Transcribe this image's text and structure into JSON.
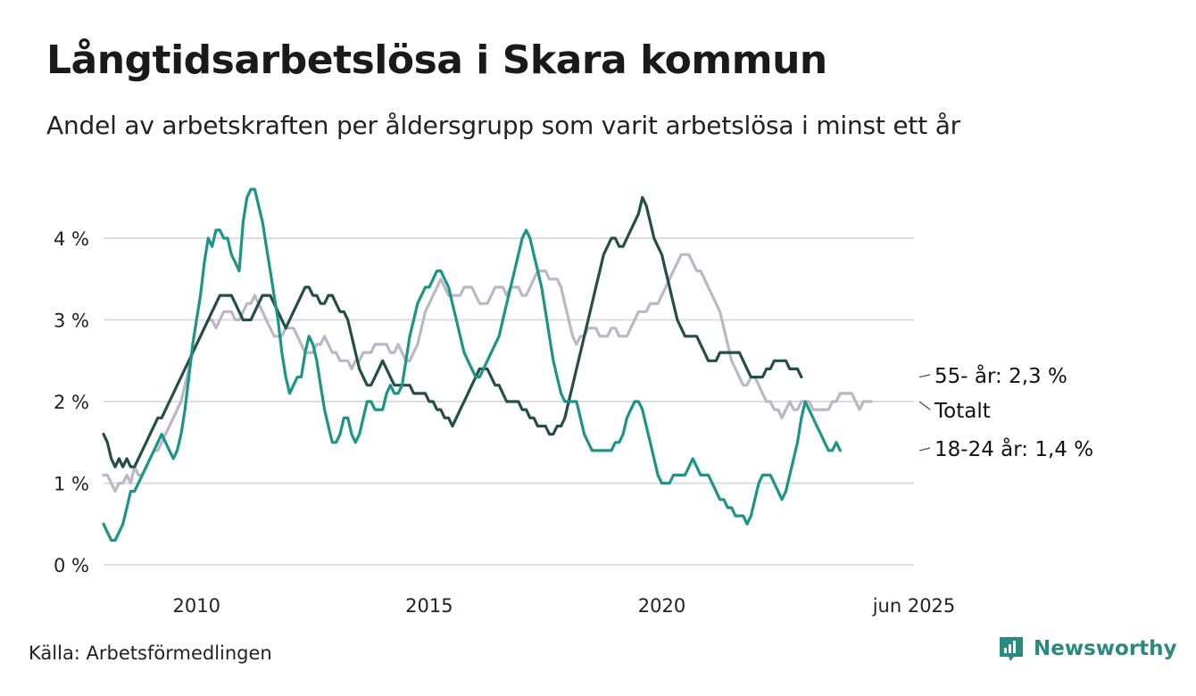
{
  "title": "Långtidsarbetslösa i Skara kommun",
  "subtitle": "Andel av arbetskraften per åldersgrupp som varit arbetslösa i minst ett år",
  "source": "Källa: Arbetsförmedlingen",
  "brand": "Newsworthy",
  "colors": {
    "total": "#bcb7c6",
    "age55": "#254e48",
    "age18": "#1b9585",
    "grid": "#dddddd",
    "brand": "#2a8a80"
  },
  "chart_data": {
    "type": "line",
    "x_start": 2008.0,
    "x_step": 0.0833333,
    "xlim": [
      2008.0,
      2025.42
    ],
    "ylim": [
      0,
      4.7
    ],
    "y_ticks": [
      0,
      1,
      2,
      3,
      4
    ],
    "y_tick_labels": [
      "0 %",
      "1 %",
      "2 %",
      "3 %",
      "4 %"
    ],
    "x_ticks": [
      2010,
      2015,
      2020,
      2025.42
    ],
    "x_tick_labels": [
      "2010",
      "2015",
      "2020",
      "jun 2025"
    ],
    "grid": true,
    "series": [
      {
        "name": "Totalt",
        "end_label": "Totalt",
        "color_key": "total",
        "values": [
          1.1,
          1.1,
          1.0,
          0.9,
          1.0,
          1.0,
          1.1,
          1.0,
          1.2,
          1.1,
          1.1,
          1.2,
          1.3,
          1.4,
          1.4,
          1.5,
          1.6,
          1.7,
          1.8,
          1.9,
          2.0,
          2.2,
          2.4,
          2.6,
          2.7,
          2.8,
          2.9,
          3.0,
          3.0,
          2.9,
          3.0,
          3.1,
          3.1,
          3.1,
          3.0,
          3.0,
          3.1,
          3.2,
          3.2,
          3.3,
          3.2,
          3.1,
          3.0,
          2.9,
          2.8,
          2.8,
          2.8,
          2.9,
          2.9,
          2.9,
          2.8,
          2.7,
          2.6,
          2.6,
          2.6,
          2.7,
          2.7,
          2.8,
          2.7,
          2.6,
          2.6,
          2.5,
          2.5,
          2.5,
          2.4,
          2.5,
          2.5,
          2.6,
          2.6,
          2.6,
          2.7,
          2.7,
          2.7,
          2.7,
          2.6,
          2.6,
          2.7,
          2.6,
          2.5,
          2.5,
          2.6,
          2.7,
          2.9,
          3.1,
          3.2,
          3.3,
          3.4,
          3.5,
          3.4,
          3.3,
          3.3,
          3.3,
          3.3,
          3.4,
          3.4,
          3.4,
          3.3,
          3.2,
          3.2,
          3.2,
          3.3,
          3.4,
          3.4,
          3.4,
          3.3,
          3.4,
          3.4,
          3.4,
          3.3,
          3.3,
          3.4,
          3.5,
          3.6,
          3.6,
          3.6,
          3.5,
          3.5,
          3.5,
          3.4,
          3.2,
          3.0,
          2.8,
          2.7,
          2.8,
          2.8,
          2.9,
          2.9,
          2.9,
          2.8,
          2.8,
          2.8,
          2.9,
          2.9,
          2.8,
          2.8,
          2.8,
          2.9,
          3.0,
          3.1,
          3.1,
          3.1,
          3.2,
          3.2,
          3.2,
          3.3,
          3.4,
          3.5,
          3.6,
          3.7,
          3.8,
          3.8,
          3.8,
          3.7,
          3.6,
          3.6,
          3.5,
          3.4,
          3.3,
          3.2,
          3.1,
          2.9,
          2.7,
          2.5,
          2.4,
          2.3,
          2.2,
          2.2,
          2.3,
          2.3,
          2.2,
          2.1,
          2.0,
          2.0,
          1.9,
          1.9,
          1.8,
          1.9,
          2.0,
          1.9,
          1.9,
          2.0,
          2.0,
          2.0,
          1.9,
          1.9,
          1.9,
          1.9,
          1.9,
          2.0,
          2.0,
          2.1,
          2.1,
          2.1,
          2.1,
          2.0,
          1.9,
          2.0,
          2.0,
          2.0
        ]
      },
      {
        "name": "55- år",
        "end_label": "55- år: 2,3 %",
        "color_key": "age55",
        "values": [
          1.6,
          1.5,
          1.3,
          1.2,
          1.3,
          1.2,
          1.3,
          1.2,
          1.2,
          1.3,
          1.4,
          1.5,
          1.6,
          1.7,
          1.8,
          1.8,
          1.9,
          2.0,
          2.1,
          2.2,
          2.3,
          2.4,
          2.5,
          2.6,
          2.7,
          2.8,
          2.9,
          3.0,
          3.1,
          3.2,
          3.3,
          3.3,
          3.3,
          3.3,
          3.2,
          3.1,
          3.0,
          3.0,
          3.0,
          3.1,
          3.2,
          3.3,
          3.3,
          3.3,
          3.2,
          3.1,
          3.0,
          2.9,
          3.0,
          3.1,
          3.2,
          3.3,
          3.4,
          3.4,
          3.3,
          3.3,
          3.2,
          3.2,
          3.3,
          3.3,
          3.2,
          3.1,
          3.1,
          3.0,
          2.8,
          2.6,
          2.4,
          2.3,
          2.2,
          2.2,
          2.3,
          2.4,
          2.5,
          2.4,
          2.3,
          2.2,
          2.2,
          2.2,
          2.2,
          2.2,
          2.1,
          2.1,
          2.1,
          2.1,
          2.0,
          2.0,
          1.9,
          1.9,
          1.8,
          1.8,
          1.7,
          1.8,
          1.9,
          2.0,
          2.1,
          2.2,
          2.3,
          2.4,
          2.4,
          2.4,
          2.3,
          2.2,
          2.2,
          2.1,
          2.0,
          2.0,
          2.0,
          2.0,
          1.9,
          1.9,
          1.8,
          1.8,
          1.7,
          1.7,
          1.7,
          1.6,
          1.6,
          1.7,
          1.7,
          1.8,
          2.0,
          2.2,
          2.4,
          2.6,
          2.8,
          3.0,
          3.2,
          3.4,
          3.6,
          3.8,
          3.9,
          4.0,
          4.0,
          3.9,
          3.9,
          4.0,
          4.1,
          4.2,
          4.3,
          4.5,
          4.4,
          4.2,
          4.0,
          3.9,
          3.8,
          3.6,
          3.4,
          3.2,
          3.0,
          2.9,
          2.8,
          2.8,
          2.8,
          2.8,
          2.7,
          2.6,
          2.5,
          2.5,
          2.5,
          2.6,
          2.6,
          2.6,
          2.6,
          2.6,
          2.6,
          2.5,
          2.4,
          2.3,
          2.3,
          2.3,
          2.3,
          2.4,
          2.4,
          2.5,
          2.5,
          2.5,
          2.5,
          2.4,
          2.4,
          2.4,
          2.3
        ]
      },
      {
        "name": "18-24 år",
        "end_label": "18-24 år: 1,4 %",
        "color_key": "age18",
        "values": [
          0.5,
          0.4,
          0.3,
          0.3,
          0.4,
          0.5,
          0.7,
          0.9,
          0.9,
          1.0,
          1.1,
          1.2,
          1.3,
          1.4,
          1.5,
          1.6,
          1.5,
          1.4,
          1.3,
          1.4,
          1.6,
          1.9,
          2.3,
          2.7,
          3.0,
          3.3,
          3.7,
          4.0,
          3.9,
          4.1,
          4.1,
          4.0,
          4.0,
          3.8,
          3.7,
          3.6,
          4.2,
          4.5,
          4.6,
          4.6,
          4.4,
          4.2,
          3.9,
          3.6,
          3.3,
          3.0,
          2.6,
          2.3,
          2.1,
          2.2,
          2.3,
          2.3,
          2.6,
          2.8,
          2.7,
          2.5,
          2.2,
          1.9,
          1.7,
          1.5,
          1.5,
          1.6,
          1.8,
          1.8,
          1.6,
          1.5,
          1.6,
          1.8,
          2.0,
          2.0,
          1.9,
          1.9,
          1.9,
          2.1,
          2.2,
          2.1,
          2.1,
          2.2,
          2.5,
          2.8,
          3.0,
          3.2,
          3.3,
          3.4,
          3.4,
          3.5,
          3.6,
          3.6,
          3.5,
          3.4,
          3.2,
          3.0,
          2.8,
          2.6,
          2.5,
          2.4,
          2.3,
          2.3,
          2.4,
          2.5,
          2.6,
          2.7,
          2.8,
          3.0,
          3.2,
          3.4,
          3.6,
          3.8,
          4.0,
          4.1,
          4.0,
          3.8,
          3.6,
          3.4,
          3.1,
          2.8,
          2.5,
          2.3,
          2.1,
          2.0,
          2.0,
          2.0,
          2.0,
          1.8,
          1.6,
          1.5,
          1.4,
          1.4,
          1.4,
          1.4,
          1.4,
          1.4,
          1.5,
          1.5,
          1.6,
          1.8,
          1.9,
          2.0,
          2.0,
          1.9,
          1.7,
          1.5,
          1.3,
          1.1,
          1.0,
          1.0,
          1.0,
          1.1,
          1.1,
          1.1,
          1.1,
          1.2,
          1.3,
          1.2,
          1.1,
          1.1,
          1.1,
          1.0,
          0.9,
          0.8,
          0.8,
          0.7,
          0.7,
          0.6,
          0.6,
          0.6,
          0.5,
          0.6,
          0.8,
          1.0,
          1.1,
          1.1,
          1.1,
          1.0,
          0.9,
          0.8,
          0.9,
          1.1,
          1.3,
          1.5,
          1.8,
          2.0,
          1.9,
          1.8,
          1.7,
          1.6,
          1.5,
          1.4,
          1.4,
          1.5,
          1.4
        ]
      }
    ]
  }
}
